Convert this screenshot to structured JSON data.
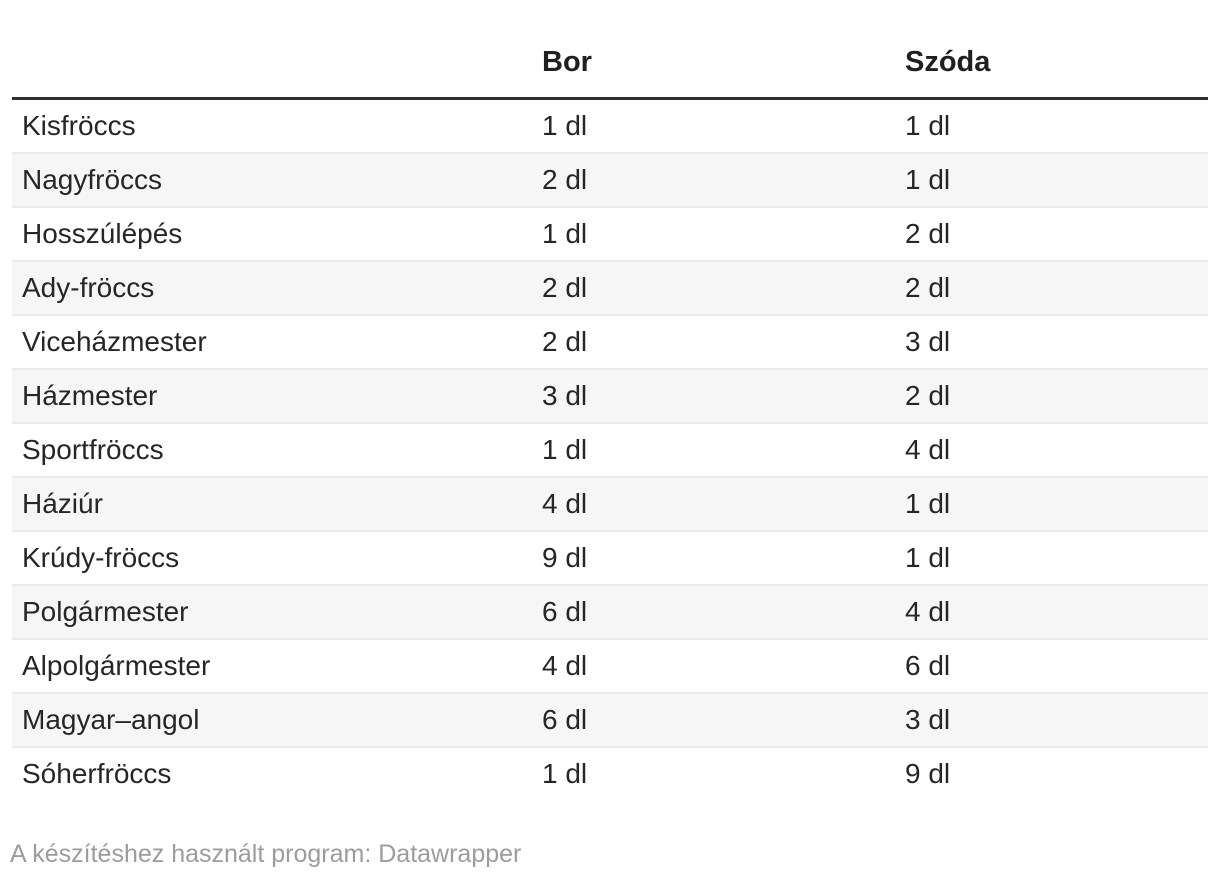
{
  "chart_data": {
    "type": "table",
    "columns": [
      "",
      "Bor",
      "Szóda"
    ],
    "rows": [
      [
        "Kisfröccs",
        "1 dl",
        "1 dl"
      ],
      [
        "Nagyfröccs",
        "2 dl",
        "1 dl"
      ],
      [
        "Hosszúlépés",
        "1 dl",
        "2 dl"
      ],
      [
        "Ady-fröccs",
        "2 dl",
        "2 dl"
      ],
      [
        "Viceházmester",
        "2 dl",
        "3 dl"
      ],
      [
        "Házmester",
        "3 dl",
        "2 dl"
      ],
      [
        "Sportfröccs",
        "1 dl",
        "4 dl"
      ],
      [
        "Háziúr",
        "4 dl",
        "1 dl"
      ],
      [
        "Krúdy-fröccs",
        "9 dl",
        "1 dl"
      ],
      [
        "Polgármester",
        "6 dl",
        "4 dl"
      ],
      [
        "Alpolgármester",
        "4 dl",
        "6 dl"
      ],
      [
        "Magyar–angol",
        "6 dl",
        "3 dl"
      ],
      [
        "Sóherfröccs",
        "1 dl",
        "9 dl"
      ]
    ],
    "numeric": {
      "unit": "dl",
      "bor_dl": [
        1,
        2,
        1,
        2,
        2,
        3,
        1,
        4,
        9,
        6,
        4,
        6,
        1
      ],
      "szoda_dl": [
        1,
        1,
        2,
        2,
        3,
        2,
        4,
        1,
        1,
        4,
        6,
        3,
        9
      ]
    },
    "layout_hints": {
      "striped_rows": true,
      "stripe_color": "#f6f6f6",
      "separator_color": "#eaeaea",
      "header_rule_color": "#2f2f2f"
    }
  },
  "footer": {
    "text": "A készítéshez használt program: Datawrapper"
  },
  "colors": {
    "text": "#262626",
    "header_text": "#202020",
    "header_rule": "#2f2f2f",
    "row_stripe": "#f6f6f6",
    "row_separator": "#eaeaea",
    "footer_text": "#9c9c9c",
    "background": "#ffffff"
  }
}
